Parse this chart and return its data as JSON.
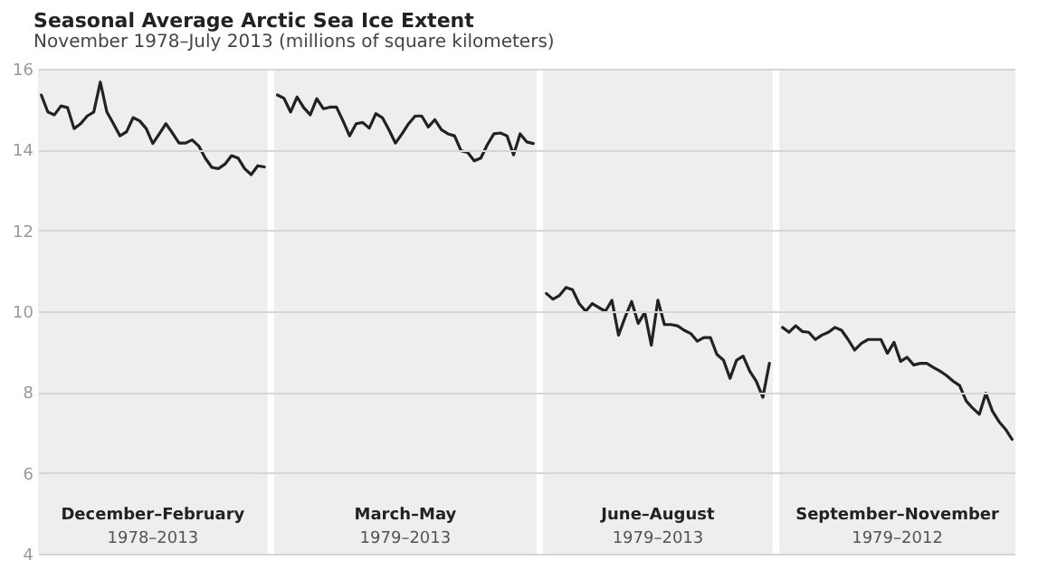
{
  "chart_data": {
    "type": "line",
    "title": "Seasonal Average Arctic Sea Ice Extent",
    "subtitle": "November 1978–July 2013 (millions of square kilometers)",
    "annotations": [
      "December–February",
      "1978–2013",
      "March–May",
      "1979–2013",
      "June–August",
      "1979–2013",
      "September–November",
      "1979–2012"
    ],
    "categories": [
      null,
      null,
      null,
      null,
      null,
      null,
      null,
      null,
      null,
      null,
      null,
      null,
      null,
      null,
      null,
      null,
      null,
      null,
      null,
      null,
      null,
      null,
      null,
      null,
      null,
      null,
      null,
      null,
      null,
      null,
      null,
      null,
      null,
      null,
      null,
      null,
      null,
      null,
      null,
      null,
      null,
      null,
      null,
      null,
      null,
      null,
      null,
      null,
      null,
      null,
      null,
      null,
      null,
      null,
      null,
      null,
      null,
      null,
      null,
      null,
      null,
      null,
      null,
      null,
      null,
      null,
      null,
      null,
      null,
      null,
      null,
      null,
      null,
      null,
      null,
      null,
      null,
      null,
      null,
      null,
      null,
      null,
      null,
      null,
      null,
      null,
      null,
      null,
      null,
      null,
      null,
      null,
      null,
      null,
      null,
      null,
      null,
      null,
      null,
      null,
      null,
      null,
      null,
      null,
      null,
      null,
      null,
      null,
      null,
      null,
      null,
      null,
      null,
      null,
      null,
      null,
      null,
      null,
      null,
      null,
      null,
      null,
      null,
      null,
      null,
      null,
      null,
      null,
      null,
      null,
      null,
      null,
      null,
      null,
      null,
      null,
      null,
      null,
      null,
      null,
      null,
      null,
      null,
      null,
      null,
      null,
      null,
      null,
      null
    ],
    "series": [
      {
        "color": "#222222",
        "values": [
          15.35,
          14.93,
          14.86,
          15.08,
          15.04,
          14.52,
          14.64,
          14.83,
          14.93,
          15.67,
          14.93,
          14.64,
          14.34,
          14.44,
          14.79,
          14.71,
          14.52,
          14.15,
          14.39,
          14.64,
          14.41,
          14.16,
          14.16,
          14.24,
          14.09,
          13.79,
          13.56,
          13.53,
          13.64,
          13.85,
          13.79,
          13.53,
          13.38,
          13.6,
          13.57,
          null,
          null,
          null,
          null,
          null,
          null,
          null,
          null,
          null,
          null,
          null,
          null,
          null,
          null,
          null,
          null,
          null,
          null,
          null,
          null,
          null,
          null,
          null,
          null,
          null,
          null,
          null,
          null,
          null,
          null,
          null,
          null,
          null,
          null,
          null,
          null,
          null,
          null,
          null,
          null,
          null,
          null,
          null,
          null,
          null,
          null,
          null,
          null,
          null,
          null,
          null,
          null,
          null,
          null,
          null,
          null,
          null,
          null,
          null,
          null,
          null,
          null,
          null,
          null,
          null,
          null,
          null,
          null,
          null,
          null,
          null,
          null,
          null,
          null,
          null,
          null,
          null,
          null,
          null,
          null,
          null,
          null,
          null,
          null,
          null,
          null,
          null,
          null,
          null,
          null,
          null,
          null,
          null,
          null,
          null,
          null,
          null,
          null,
          null,
          null,
          null,
          null,
          null,
          null,
          null,
          null,
          null,
          null,
          null,
          null,
          null,
          null,
          null,
          null
        ]
      },
      {
        "color": "#222222",
        "values": [
          null,
          null,
          null,
          null,
          null,
          null,
          null,
          null,
          null,
          null,
          null,
          null,
          null,
          null,
          null,
          null,
          null,
          null,
          null,
          null,
          null,
          null,
          null,
          null,
          null,
          null,
          null,
          null,
          null,
          null,
          null,
          null,
          null,
          null,
          null,
          null,
          15.35,
          15.27,
          14.93,
          15.3,
          15.04,
          14.86,
          15.26,
          15.01,
          15.05,
          15.05,
          14.71,
          14.34,
          14.64,
          14.67,
          14.53,
          14.89,
          14.79,
          14.49,
          14.16,
          14.39,
          14.64,
          14.83,
          14.83,
          14.56,
          14.74,
          14.49,
          14.39,
          14.34,
          13.97,
          13.93,
          13.72,
          13.79,
          14.12,
          14.39,
          14.41,
          14.34,
          13.87,
          14.39,
          14.19,
          14.15,
          null,
          null,
          null,
          null,
          null,
          null,
          null,
          null,
          null,
          null,
          null,
          null,
          null,
          null,
          null,
          null,
          null,
          null,
          null,
          null,
          null,
          null,
          null,
          null,
          null,
          null,
          null,
          null,
          null,
          null,
          null,
          null,
          null,
          null,
          null,
          null,
          null,
          null,
          null,
          null,
          null,
          null,
          null,
          null,
          null,
          null,
          null,
          null,
          null,
          null,
          null,
          null,
          null,
          null,
          null,
          null,
          null,
          null,
          null,
          null,
          null,
          null,
          null,
          null,
          null,
          null,
          null,
          null,
          null,
          null,
          null,
          null,
          null
        ]
      },
      {
        "color": "#222222",
        "values": [
          null,
          null,
          null,
          null,
          null,
          null,
          null,
          null,
          null,
          null,
          null,
          null,
          null,
          null,
          null,
          null,
          null,
          null,
          null,
          null,
          null,
          null,
          null,
          null,
          null,
          null,
          null,
          null,
          null,
          null,
          null,
          null,
          null,
          null,
          null,
          null,
          null,
          null,
          null,
          null,
          null,
          null,
          null,
          null,
          null,
          null,
          null,
          null,
          null,
          null,
          null,
          null,
          null,
          null,
          null,
          null,
          null,
          null,
          null,
          null,
          null,
          null,
          null,
          null,
          null,
          null,
          null,
          null,
          null,
          null,
          null,
          null,
          null,
          null,
          null,
          null,
          null,
          10.44,
          10.3,
          10.39,
          10.59,
          10.53,
          10.19,
          10.0,
          10.19,
          10.09,
          10.0,
          10.27,
          9.41,
          9.85,
          10.24,
          9.7,
          9.97,
          9.16,
          10.27,
          9.67,
          9.67,
          9.64,
          9.53,
          9.45,
          9.26,
          9.35,
          9.35,
          8.93,
          8.79,
          8.34,
          8.79,
          8.89,
          8.52,
          8.27,
          7.87,
          8.71,
          null,
          null,
          null,
          null,
          null,
          null,
          null,
          null,
          null,
          null,
          null,
          null,
          null,
          null,
          null,
          null,
          null,
          null,
          null,
          null,
          null,
          null,
          null,
          null,
          null,
          null,
          null,
          null,
          null,
          null,
          null,
          null,
          null,
          null,
          null,
          null,
          null
        ]
      },
      {
        "color": "#222222",
        "values": [
          null,
          null,
          null,
          null,
          null,
          null,
          null,
          null,
          null,
          null,
          null,
          null,
          null,
          null,
          null,
          null,
          null,
          null,
          null,
          null,
          null,
          null,
          null,
          null,
          null,
          null,
          null,
          null,
          null,
          null,
          null,
          null,
          null,
          null,
          null,
          null,
          null,
          null,
          null,
          null,
          null,
          null,
          null,
          null,
          null,
          null,
          null,
          null,
          null,
          null,
          null,
          null,
          null,
          null,
          null,
          null,
          null,
          null,
          null,
          null,
          null,
          null,
          null,
          null,
          null,
          null,
          null,
          null,
          null,
          null,
          null,
          null,
          null,
          null,
          null,
          null,
          null,
          null,
          null,
          null,
          null,
          null,
          null,
          null,
          null,
          null,
          null,
          null,
          null,
          null,
          null,
          null,
          null,
          null,
          null,
          null,
          null,
          null,
          null,
          null,
          null,
          null,
          null,
          null,
          null,
          null,
          null,
          null,
          null,
          null,
          null,
          null,
          null,
          9.6,
          9.48,
          9.64,
          9.5,
          9.48,
          9.3,
          9.41,
          9.48,
          9.6,
          9.53,
          9.3,
          9.04,
          9.2,
          9.3,
          9.3,
          9.3,
          8.96,
          9.23,
          8.76,
          8.86,
          8.67,
          8.71,
          8.71,
          8.61,
          8.52,
          8.41,
          8.27,
          8.16,
          7.78,
          7.6,
          7.45,
          7.97,
          7.53,
          7.27,
          7.08,
          6.83
        ]
      }
    ],
    "ylim": [
      4,
      16
    ],
    "yticks": [
      4,
      6,
      8,
      10,
      12,
      14,
      16
    ],
    "grid": "y",
    "tick_labels": "y"
  }
}
